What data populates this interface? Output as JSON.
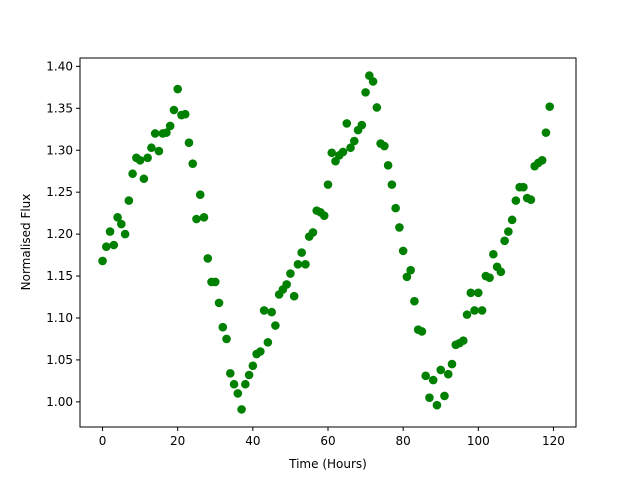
{
  "chart_data": {
    "type": "scatter",
    "title": "",
    "xlabel": "Time (Hours)",
    "ylabel": "Normalised Flux",
    "xlim": [
      -6,
      126
    ],
    "ylim": [
      0.97,
      1.41
    ],
    "xticks": [
      0,
      20,
      40,
      60,
      80,
      100,
      120
    ],
    "xtick_labels": [
      "0",
      "20",
      "40",
      "60",
      "80",
      "100",
      "120"
    ],
    "yticks": [
      1.0,
      1.05,
      1.1,
      1.15,
      1.2,
      1.25,
      1.3,
      1.35,
      1.4
    ],
    "ytick_labels": [
      "1.00",
      "1.05",
      "1.10",
      "1.15",
      "1.20",
      "1.25",
      "1.30",
      "1.35",
      "1.40"
    ],
    "grid": false,
    "legend": "none",
    "marker_color": "#008000",
    "series": [
      {
        "x": [
          0,
          1,
          2,
          3,
          4,
          5,
          6,
          7,
          8,
          9,
          10,
          11,
          12,
          13,
          14,
          15,
          16,
          17,
          18,
          19,
          20,
          21,
          22,
          23,
          24,
          25,
          26,
          27,
          28,
          29,
          30,
          31,
          32,
          33,
          34,
          35,
          36,
          37,
          38,
          39,
          40,
          41,
          42,
          43,
          44,
          45,
          46,
          47,
          48,
          49,
          50,
          51,
          52,
          53,
          54,
          55,
          56,
          57,
          58,
          59,
          60,
          61,
          62,
          63,
          64,
          65,
          66,
          67,
          68,
          69,
          70,
          71,
          72,
          73,
          74,
          75,
          76,
          77,
          78,
          79,
          80,
          81,
          82,
          83,
          84,
          85,
          86,
          87,
          88,
          89,
          90,
          91,
          92,
          93,
          94,
          95,
          96,
          97,
          98,
          99,
          100,
          101,
          102,
          103,
          104,
          105,
          106,
          107,
          108,
          109,
          110,
          111,
          112,
          113,
          114,
          115,
          116,
          117,
          118,
          119
        ],
        "y": [
          1.168,
          1.185,
          1.203,
          1.187,
          1.22,
          1.212,
          1.2,
          1.24,
          1.272,
          1.291,
          1.288,
          1.266,
          1.291,
          1.303,
          1.32,
          1.299,
          1.32,
          1.321,
          1.329,
          1.348,
          1.373,
          1.342,
          1.343,
          1.309,
          1.284,
          1.218,
          1.247,
          1.22,
          1.171,
          1.143,
          1.143,
          1.118,
          1.089,
          1.075,
          1.034,
          1.021,
          1.01,
          0.991,
          1.021,
          1.032,
          1.043,
          1.057,
          1.06,
          1.109,
          1.071,
          1.107,
          1.091,
          1.128,
          1.134,
          1.14,
          1.153,
          1.126,
          1.164,
          1.178,
          1.164,
          1.197,
          1.202,
          1.228,
          1.226,
          1.222,
          1.259,
          1.297,
          1.287,
          1.294,
          1.298,
          1.332,
          1.303,
          1.311,
          1.324,
          1.33,
          1.369,
          1.389,
          1.382,
          1.351,
          1.308,
          1.305,
          1.282,
          1.259,
          1.231,
          1.208,
          1.18,
          1.149,
          1.157,
          1.12,
          1.086,
          1.084,
          1.031,
          1.005,
          1.026,
          0.996,
          1.038,
          1.007,
          1.033,
          1.045,
          1.068,
          1.07,
          1.073,
          1.104,
          1.13,
          1.109,
          1.13,
          1.109,
          1.15,
          1.148,
          1.176,
          1.161,
          1.155,
          1.192,
          1.203,
          1.217,
          1.24,
          1.256,
          1.256,
          1.243,
          1.241,
          1.281,
          1.285,
          1.288,
          1.321,
          1.352
        ]
      }
    ]
  }
}
